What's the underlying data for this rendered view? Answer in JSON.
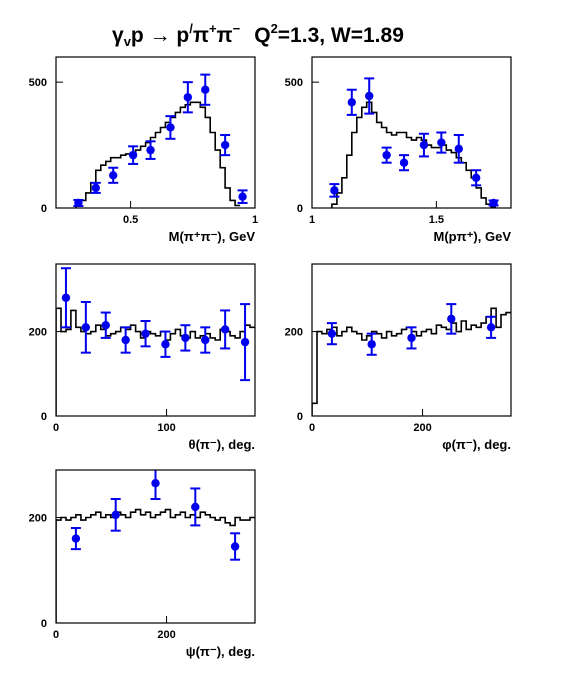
{
  "title": {
    "reaction": "γ",
    "reaction_sub": "v",
    "reaction_rest": "p → p",
    "prime": "/",
    "pi1": "π",
    "pi1_sup": "+",
    "pi2": "π",
    "pi2_sup": "−",
    "q_label": "Q",
    "q_sup": "2",
    "q_rest": "=1.3, W=1.89"
  },
  "colors": {
    "data": "#0000ee",
    "model": "#000000",
    "frame": "#000000"
  },
  "chart_data": [
    {
      "type": "line",
      "id": "m-pipi",
      "xlabel": "M(π⁺π⁻), GeV",
      "xlim": [
        0.2,
        1.0
      ],
      "ylim": [
        0,
        600
      ],
      "xticks": [
        {
          "v": 0.5,
          "t": "0.5"
        },
        {
          "v": 1.0,
          "t": "1"
        }
      ],
      "yticks": [
        {
          "v": 0,
          "t": "0"
        },
        {
          "v": 500,
          "t": "500"
        }
      ],
      "model": {
        "x_start": 0.28,
        "step": 0.02,
        "values": [
          15,
          30,
          60,
          100,
          150,
          170,
          185,
          200,
          200,
          210,
          215,
          220,
          230,
          245,
          260,
          280,
          300,
          320,
          340,
          360,
          380,
          400,
          410,
          420,
          420,
          400,
          360,
          300,
          230,
          160,
          80,
          30,
          10
        ]
      },
      "points": [
        {
          "x": 0.29,
          "y": 20,
          "err": 12
        },
        {
          "x": 0.36,
          "y": 80,
          "err": 20
        },
        {
          "x": 0.43,
          "y": 130,
          "err": 30
        },
        {
          "x": 0.51,
          "y": 210,
          "err": 35
        },
        {
          "x": 0.58,
          "y": 230,
          "err": 35
        },
        {
          "x": 0.66,
          "y": 320,
          "err": 45
        },
        {
          "x": 0.73,
          "y": 440,
          "err": 60
        },
        {
          "x": 0.8,
          "y": 470,
          "err": 60
        },
        {
          "x": 0.88,
          "y": 250,
          "err": 40
        },
        {
          "x": 0.95,
          "y": 45,
          "err": 25
        }
      ]
    },
    {
      "type": "line",
      "id": "m-ppi",
      "xlabel": "M(pπ⁺), GeV",
      "xlim": [
        1.0,
        1.8
      ],
      "ylim": [
        0,
        600
      ],
      "xticks": [
        {
          "v": 1.0,
          "t": "1"
        },
        {
          "v": 1.5,
          "t": "1.5"
        }
      ],
      "yticks": [
        {
          "v": 0,
          "t": "0"
        },
        {
          "v": 500,
          "t": "500"
        }
      ],
      "model": {
        "x_start": 1.08,
        "step": 0.02,
        "values": [
          15,
          60,
          120,
          210,
          300,
          360,
          400,
          420,
          380,
          340,
          320,
          300,
          290,
          300,
          300,
          280,
          270,
          280,
          270,
          250,
          240,
          240,
          250,
          230,
          220,
          200,
          180,
          150,
          120,
          80,
          40,
          15,
          5
        ]
      },
      "points": [
        {
          "x": 1.09,
          "y": 70,
          "err": 25
        },
        {
          "x": 1.16,
          "y": 420,
          "err": 50
        },
        {
          "x": 1.23,
          "y": 445,
          "err": 70
        },
        {
          "x": 1.3,
          "y": 210,
          "err": 30
        },
        {
          "x": 1.37,
          "y": 180,
          "err": 30
        },
        {
          "x": 1.45,
          "y": 250,
          "err": 45
        },
        {
          "x": 1.52,
          "y": 260,
          "err": 40
        },
        {
          "x": 1.59,
          "y": 235,
          "err": 55
        },
        {
          "x": 1.66,
          "y": 120,
          "err": 30
        },
        {
          "x": 1.73,
          "y": 20,
          "err": 10
        }
      ]
    },
    {
      "type": "line",
      "id": "theta-pi",
      "xlabel": "θ(π⁻), deg.",
      "xlim": [
        0,
        180
      ],
      "ylim": [
        0,
        360
      ],
      "xticks": [
        {
          "v": 0,
          "t": "0"
        },
        {
          "v": 100,
          "t": "100"
        }
      ],
      "yticks": [
        {
          "v": 0,
          "t": "0"
        },
        {
          "v": 200,
          "t": "200"
        }
      ],
      "model": {
        "x_start": 0,
        "step": 4.5,
        "values": [
          255,
          200,
          205,
          250,
          210,
          200,
          195,
          200,
          215,
          205,
          190,
          195,
          200,
          210,
          205,
          215,
          200,
          185,
          200,
          195,
          190,
          200,
          180,
          195,
          205,
          190,
          185,
          200,
          185,
          190,
          195,
          185,
          180,
          205,
          200,
          190,
          185,
          200,
          215,
          210
        ]
      },
      "points": [
        {
          "x": 9,
          "y": 280,
          "err": 70
        },
        {
          "x": 27,
          "y": 210,
          "err": 60
        },
        {
          "x": 45,
          "y": 215,
          "err": 30
        },
        {
          "x": 63,
          "y": 180,
          "err": 30
        },
        {
          "x": 81,
          "y": 195,
          "err": 30
        },
        {
          "x": 99,
          "y": 170,
          "err": 30
        },
        {
          "x": 117,
          "y": 185,
          "err": 30
        },
        {
          "x": 135,
          "y": 180,
          "err": 30
        },
        {
          "x": 153,
          "y": 205,
          "err": 45
        },
        {
          "x": 171,
          "y": 175,
          "err": 90
        }
      ]
    },
    {
      "type": "line",
      "id": "phi-pi",
      "xlabel": "φ(π⁻), deg.",
      "xlim": [
        0,
        360
      ],
      "ylim": [
        0,
        360
      ],
      "xticks": [
        {
          "v": 0,
          "t": "0"
        },
        {
          "v": 200,
          "t": "200"
        }
      ],
      "yticks": [
        {
          "v": 0,
          "t": "0"
        },
        {
          "v": 200,
          "t": "200"
        }
      ],
      "model": {
        "x_start": 0,
        "step": 9,
        "values": [
          30,
          200,
          195,
          205,
          210,
          190,
          200,
          210,
          200,
          195,
          180,
          190,
          200,
          195,
          185,
          200,
          190,
          195,
          205,
          210,
          200,
          190,
          200,
          205,
          195,
          215,
          210,
          205,
          220,
          200,
          225,
          205,
          215,
          210,
          220,
          235,
          255,
          210,
          240,
          245
        ]
      },
      "points": [
        {
          "x": 36,
          "y": 195,
          "err": 25
        },
        {
          "x": 108,
          "y": 170,
          "err": 25
        },
        {
          "x": 180,
          "y": 185,
          "err": 25
        },
        {
          "x": 252,
          "y": 230,
          "err": 35
        },
        {
          "x": 324,
          "y": 210,
          "err": 25
        }
      ]
    },
    {
      "type": "line",
      "id": "psi-pi",
      "xlabel": "ψ(π⁻), deg.",
      "xlim": [
        0,
        360
      ],
      "ylim": [
        0,
        290
      ],
      "xticks": [
        {
          "v": 0,
          "t": "0"
        },
        {
          "v": 200,
          "t": "200"
        }
      ],
      "yticks": [
        {
          "v": 0,
          "t": "0"
        },
        {
          "v": 200,
          "t": "200"
        }
      ],
      "model": {
        "x_start": 0,
        "step": 9,
        "values": [
          195,
          200,
          195,
          200,
          205,
          195,
          200,
          205,
          210,
          200,
          205,
          200,
          210,
          205,
          200,
          210,
          215,
          205,
          210,
          200,
          205,
          210,
          215,
          200,
          205,
          210,
          200,
          205,
          200,
          210,
          205,
          200,
          195,
          200,
          190,
          185,
          200,
          195,
          195,
          200
        ]
      },
      "points": [
        {
          "x": 36,
          "y": 160,
          "err": 20
        },
        {
          "x": 108,
          "y": 205,
          "err": 30
        },
        {
          "x": 180,
          "y": 265,
          "err": 30
        },
        {
          "x": 252,
          "y": 220,
          "err": 35
        },
        {
          "x": 324,
          "y": 145,
          "err": 25
        }
      ]
    }
  ]
}
